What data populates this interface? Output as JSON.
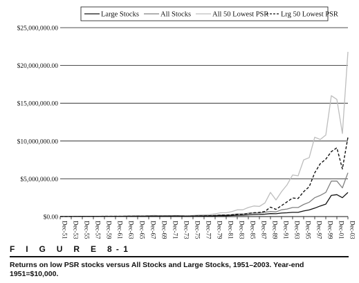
{
  "figure": {
    "label": "F I G U R E  8-1",
    "caption": "Returns on low PSR stocks versus All Stocks and Large Stocks, 1951–2003. Year-end 1951=$10,000."
  },
  "colors": {
    "large_stocks": "#111111",
    "all_stocks": "#808080",
    "all_50_lowest_psr": "#bdbdbd",
    "lrg_50_lowest_psr": "#111111"
  },
  "chart_data": {
    "type": "line",
    "x": [
      "Dec-51",
      "Dec-52",
      "Dec-53",
      "Dec-54",
      "Dec-55",
      "Dec-56",
      "Dec-57",
      "Dec-58",
      "Dec-59",
      "Dec-60",
      "Dec-61",
      "Dec-62",
      "Dec-63",
      "Dec-64",
      "Dec-65",
      "Dec-66",
      "Dec-67",
      "Dec-68",
      "Dec-69",
      "Dec-70",
      "Dec-71",
      "Dec-72",
      "Dec-73",
      "Dec-74",
      "Dec-75",
      "Dec-76",
      "Dec-77",
      "Dec-78",
      "Dec-79",
      "Dec-80",
      "Dec-81",
      "Dec-82",
      "Dec-83",
      "Dec-84",
      "Dec-85",
      "Dec-86",
      "Dec-87",
      "Dec-88",
      "Dec-89",
      "Dec-90",
      "Dec-91",
      "Dec-92",
      "Dec-93",
      "Dec-94",
      "Dec-95",
      "Dec-96",
      "Dec-97",
      "Dec-98",
      "Dec-99",
      "Dec-00",
      "Dec-01",
      "Dec-02",
      "Dec-03"
    ],
    "x_tick_labels": [
      "Dec-51",
      "Dec-53",
      "Dec-55",
      "Dec-57",
      "Dec-59",
      "Dec-61",
      "Dec-63",
      "Dec-65",
      "Dec-67",
      "Dec-69",
      "Dec-71",
      "Dec-73",
      "Dec-75",
      "Dec-77",
      "Dec-79",
      "Dec-81",
      "Dec-83",
      "Dec-85",
      "Dec-87",
      "Dec-89",
      "Dec-91",
      "Dec-93",
      "Dec-95",
      "Dec-97",
      "Dec-99",
      "Dec-01",
      "Dec-03"
    ],
    "y_tick_values": [
      0,
      5000000,
      10000000,
      15000000,
      20000000,
      25000000
    ],
    "y_tick_labels": [
      "$0.00",
      "$5,000,000.00",
      "$10,000,000.00",
      "$15,000,000.00",
      "$20,000,000.00",
      "$25,000,000.00"
    ],
    "ylim": [
      0,
      25000000
    ],
    "grid": "horizontal",
    "legend_placement": "top",
    "title": "",
    "xlabel": "",
    "ylabel": "",
    "series": [
      {
        "name": "Large Stocks",
        "style": "solid-dark",
        "values": [
          10000,
          12000,
          12000,
          17000,
          22000,
          24000,
          22000,
          29000,
          32000,
          33000,
          38000,
          36000,
          42000,
          48000,
          52000,
          48000,
          57000,
          62000,
          58000,
          60000,
          68000,
          80000,
          68000,
          52000,
          70000,
          85000,
          80000,
          86000,
          100000,
          125000,
          120000,
          140000,
          170000,
          180000,
          230000,
          270000,
          280000,
          320000,
          390000,
          380000,
          470000,
          500000,
          560000,
          560000,
          740000,
          880000,
          1120000,
          1400000,
          1650000,
          2800000,
          2900000,
          2500000,
          3200000
        ]
      },
      {
        "name": "All Stocks",
        "style": "solid-mid",
        "values": [
          10000,
          12000,
          12000,
          17000,
          22000,
          24000,
          22000,
          30000,
          33000,
          34000,
          40000,
          37000,
          45000,
          52000,
          60000,
          55000,
          72000,
          85000,
          72000,
          70000,
          80000,
          88000,
          70000,
          55000,
          75000,
          100000,
          110000,
          125000,
          160000,
          210000,
          210000,
          260000,
          340000,
          330000,
          430000,
          480000,
          480000,
          580000,
          680000,
          620000,
          900000,
          1000000,
          1200000,
          1200000,
          1600000,
          1900000,
          2500000,
          2800000,
          3200000,
          4700000,
          4700000,
          3800000,
          5800000
        ]
      },
      {
        "name": "All 50 Lowest PSR",
        "style": "solid-light",
        "values": [
          10000,
          13000,
          13000,
          20000,
          27000,
          30000,
          28000,
          40000,
          45000,
          47000,
          56000,
          52000,
          65000,
          78000,
          95000,
          88000,
          125000,
          155000,
          125000,
          118000,
          140000,
          150000,
          118000,
          95000,
          145000,
          200000,
          230000,
          270000,
          370000,
          500000,
          500000,
          650000,
          900000,
          900000,
          1200000,
          1400000,
          1350000,
          1800000,
          3200000,
          2200000,
          3300000,
          4200000,
          5500000,
          5400000,
          7500000,
          7800000,
          10500000,
          10200000,
          10800000,
          16000000,
          15500000,
          11000000,
          21800000
        ]
      },
      {
        "name": "Lrg 50 Lowest PSR",
        "style": "dashed-dark",
        "values": [
          10000,
          12000,
          12000,
          17000,
          23000,
          25000,
          23000,
          31000,
          34000,
          35000,
          41000,
          38000,
          45000,
          52000,
          58000,
          53000,
          65000,
          72000,
          64000,
          64000,
          74000,
          84000,
          70000,
          55000,
          78000,
          100000,
          105000,
          115000,
          145000,
          185000,
          185000,
          230000,
          300000,
          310000,
          420000,
          500000,
          550000,
          680000,
          1250000,
          950000,
          1450000,
          1950000,
          2450000,
          2400000,
          3300000,
          3950000,
          5800000,
          7000000,
          7600000,
          8600000,
          9100000,
          6300000,
          10500000
        ]
      }
    ]
  }
}
